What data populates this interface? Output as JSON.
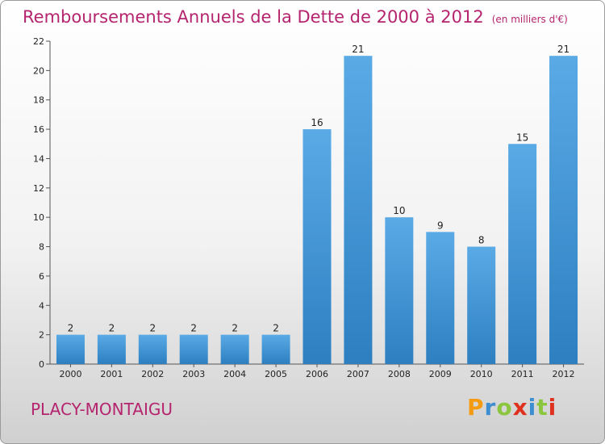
{
  "title": "Remboursements Annuels de la Dette de 2000 à 2012",
  "unit_note": "(en milliers d'€)",
  "commune": "PLACY-MONTAIGU",
  "logo": {
    "letters": [
      "P",
      "r",
      "o",
      "x",
      "i",
      "t",
      "i"
    ],
    "colors": [
      "#f39c12",
      "#3c8ed0",
      "#8cc63f",
      "#e0301e",
      "#3c8ed0",
      "#8cc63f",
      "#e0301e"
    ]
  },
  "colors": {
    "bar_top": "#5aaae6",
    "bar_bottom": "#2d7fc0",
    "title": "#b5246e"
  },
  "chart_data": {
    "type": "bar",
    "title": "Remboursements Annuels de la Dette de 2000 à 2012",
    "xlabel": "",
    "ylabel": "",
    "categories": [
      "2000",
      "2001",
      "2002",
      "2003",
      "2004",
      "2005",
      "2006",
      "2007",
      "2008",
      "2009",
      "2010",
      "2011",
      "2012"
    ],
    "values": [
      2,
      2,
      2,
      2,
      2,
      2,
      16,
      21,
      10,
      9,
      8,
      15,
      21
    ],
    "ylim": [
      0,
      22
    ],
    "yticks": [
      0,
      2,
      4,
      6,
      8,
      10,
      12,
      14,
      16,
      18,
      20,
      22
    ],
    "grid": false,
    "legend": "none"
  }
}
